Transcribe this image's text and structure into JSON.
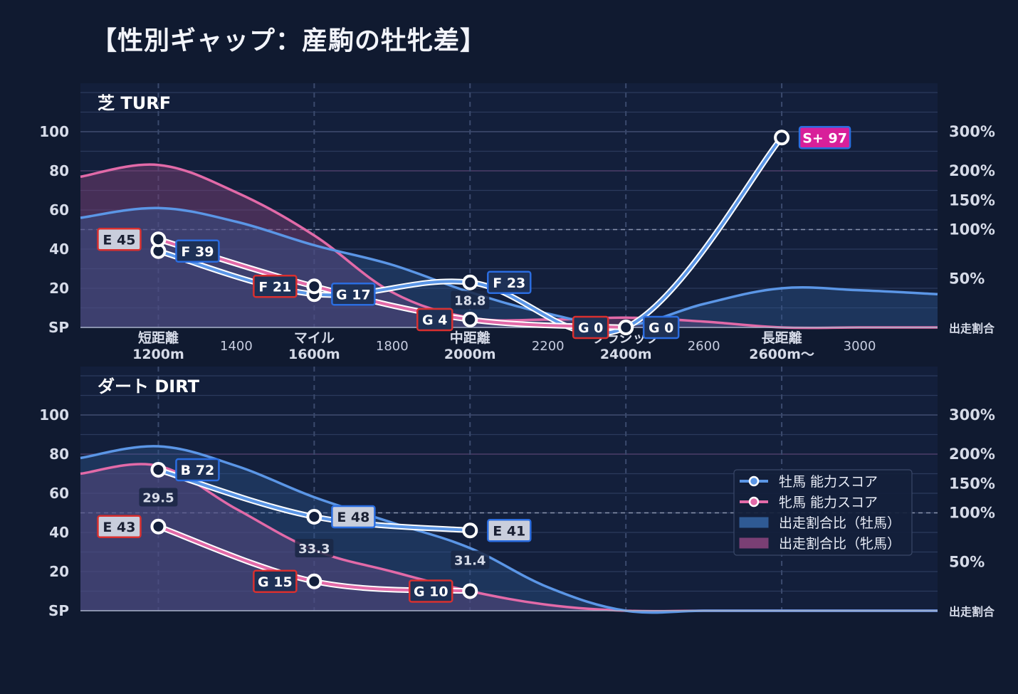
{
  "title": "【性別ギャップ：産駒の牡牝差】",
  "colors": {
    "background": "#101a30",
    "panel": "#131f3b",
    "male": "#5b96e6",
    "female": "#e26aa8",
    "label_red": "#d9302f",
    "label_blue": "#2b6de0",
    "label_magenta": "#e020a0"
  },
  "chart_data": [
    {
      "type": "line",
      "title": "芝 TURF",
      "y_ticks": [
        "100",
        "80",
        "60",
        "40",
        "20",
        "SP"
      ],
      "y_tick_values": [
        100,
        80,
        60,
        40,
        20,
        0
      ],
      "ylim": [
        0,
        120
      ],
      "y2_ticks": [
        "300%",
        "200%",
        "150%",
        "100%",
        "50%",
        "出走割合"
      ],
      "y2_tick_values": [
        100,
        80,
        65,
        50,
        25,
        0
      ],
      "categories": [
        {
          "name": "短距離",
          "dist": "1200m",
          "x": 1200
        },
        {
          "name": "マイル",
          "dist": "1600m",
          "x": 1600
        },
        {
          "name": "中距離",
          "dist": "2000m",
          "x": 2000
        },
        {
          "name": "クラシック",
          "dist": "2400m",
          "x": 2400
        },
        {
          "name": "長距離",
          "dist": "2600m〜",
          "x": 2800
        }
      ],
      "minor_ticks": [
        "1400",
        "1800",
        "2200",
        "2600",
        "3000"
      ],
      "minor_tick_values": [
        1400,
        1800,
        2200,
        2600,
        3000
      ],
      "xlim": [
        1000,
        3200
      ],
      "series": [
        {
          "name": "牡馬 能力スコア",
          "x": [
            1200,
            1600,
            2000,
            2400,
            2800
          ],
          "values": [
            39,
            17,
            23,
            0,
            97
          ],
          "labels": [
            "F 39",
            "G 17",
            "F 23",
            "G 0",
            "S+ 97"
          ],
          "label_colors": [
            "#2b6de0",
            "#2b6de0",
            "#2b6de0",
            "#2b6de0",
            "#2b6de0"
          ],
          "label_fills": [
            "#1e3156",
            "#1e3156",
            "#1e3156",
            "#1e3156",
            "#d81f9a"
          ]
        },
        {
          "name": "牝馬 能力スコア",
          "x": [
            1200,
            1600,
            2000,
            2400
          ],
          "values": [
            45,
            21,
            4,
            0
          ],
          "labels": [
            "E 45",
            "F 21",
            "G 4",
            "G 0"
          ],
          "label_colors": [
            "#d9302f",
            "#d9302f",
            "#d9302f",
            "#d9302f"
          ],
          "label_fills": [
            "#c9cedc",
            "#1e3156",
            "#1e3156",
            "#1e3156"
          ]
        }
      ],
      "ratio_male": {
        "x": [
          1000,
          1200,
          1400,
          1600,
          1800,
          2000,
          2200,
          2400,
          2600,
          2800,
          3000,
          3200
        ],
        "values": [
          56,
          61,
          54,
          42,
          32,
          18,
          7,
          1,
          12,
          20,
          19,
          17
        ]
      },
      "ratio_female": {
        "x": [
          1000,
          1200,
          1400,
          1600,
          1800,
          2000,
          2200,
          2400,
          2600,
          2800,
          3000,
          3200
        ],
        "values": [
          77,
          83,
          69,
          47,
          18,
          5,
          4,
          5,
          3,
          0,
          0,
          0
        ]
      },
      "ratio_texts": [
        {
          "text": "18.8",
          "x": 2000,
          "y": 14
        }
      ]
    },
    {
      "type": "line",
      "title": "ダート DIRT",
      "y_ticks": [
        "100",
        "80",
        "60",
        "40",
        "20",
        "SP"
      ],
      "y_tick_values": [
        100,
        80,
        60,
        40,
        20,
        0
      ],
      "ylim": [
        0,
        120
      ],
      "y2_ticks": [
        "300%",
        "200%",
        "150%",
        "100%",
        "50%",
        "出走割合"
      ],
      "y2_tick_values": [
        100,
        80,
        65,
        50,
        25,
        0
      ],
      "categories": [
        {
          "x": 1200
        },
        {
          "x": 1600
        },
        {
          "x": 2000
        },
        {
          "x": 2400
        },
        {
          "x": 2800
        }
      ],
      "xlim": [
        1000,
        3200
      ],
      "series": [
        {
          "name": "牡馬 能力スコア",
          "x": [
            1200,
            1600,
            2000
          ],
          "values": [
            72,
            48,
            41
          ],
          "labels": [
            "B 72",
            "E 48",
            "E 41"
          ],
          "label_colors": [
            "#2b6de0",
            "#2b6de0",
            "#2b6de0"
          ],
          "label_fills": [
            "#1e3156",
            "#c9cedc",
            "#c9cedc"
          ]
        },
        {
          "name": "牝馬 能力スコア",
          "x": [
            1200,
            1600,
            2000
          ],
          "values": [
            43,
            15,
            10
          ],
          "labels": [
            "E 43",
            "G 15",
            "G 10"
          ],
          "label_colors": [
            "#d9302f",
            "#d9302f",
            "#d9302f"
          ],
          "label_fills": [
            "#c9cedc",
            "#1e3156",
            "#1e3156"
          ]
        }
      ],
      "ratio_male": {
        "x": [
          1000,
          1200,
          1400,
          1600,
          1800,
          2000,
          2200,
          2400,
          2600,
          2800,
          3000,
          3200
        ],
        "values": [
          78,
          84,
          74,
          58,
          45,
          32,
          12,
          0,
          0,
          0,
          0,
          0
        ]
      },
      "ratio_female": {
        "x": [
          1000,
          1200,
          1400,
          1600,
          1800,
          2000,
          2200,
          2400,
          2600,
          2800,
          3000,
          3200
        ],
        "values": [
          70,
          74,
          52,
          31,
          20,
          10,
          3,
          0,
          0,
          0,
          0,
          0
        ]
      },
      "ratio_texts": [
        {
          "text": "29.5",
          "x": 1200,
          "y": 58
        },
        {
          "text": "33.3",
          "x": 1600,
          "y": 32
        },
        {
          "text": "31.4",
          "x": 2000,
          "y": 26
        }
      ]
    }
  ],
  "legend": {
    "position": "right",
    "items": [
      {
        "label": "牡馬 能力スコア",
        "kind": "line",
        "color": "#5b96e6"
      },
      {
        "label": "牝馬 能力スコア",
        "kind": "line",
        "color": "#e26aa8"
      },
      {
        "label": "出走割合比（牡馬）",
        "kind": "area",
        "color": "#2f5a94"
      },
      {
        "label": "出走割合比（牝馬）",
        "kind": "area",
        "color": "#7a3f74"
      }
    ]
  }
}
